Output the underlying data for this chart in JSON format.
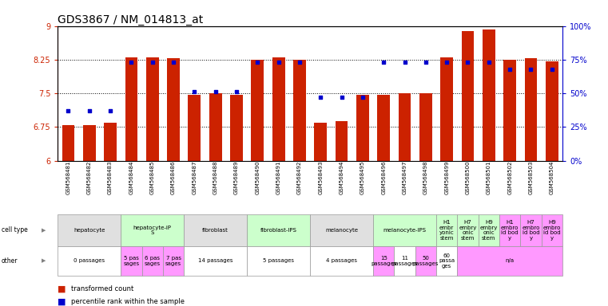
{
  "title": "GDS3867 / NM_014813_at",
  "samples": [
    "GSM568481",
    "GSM568482",
    "GSM568483",
    "GSM568484",
    "GSM568485",
    "GSM568486",
    "GSM568487",
    "GSM568488",
    "GSM568489",
    "GSM568490",
    "GSM568491",
    "GSM568492",
    "GSM568493",
    "GSM568494",
    "GSM568495",
    "GSM568496",
    "GSM568497",
    "GSM568498",
    "GSM568499",
    "GSM568500",
    "GSM568501",
    "GSM568502",
    "GSM568503",
    "GSM568504"
  ],
  "red_values": [
    6.8,
    6.8,
    6.85,
    8.3,
    8.3,
    8.28,
    7.47,
    7.5,
    7.47,
    8.25,
    8.3,
    8.25,
    6.85,
    6.88,
    7.47,
    7.47,
    7.5,
    7.5,
    8.3,
    8.88,
    8.92,
    8.25,
    8.28,
    8.22
  ],
  "blue_percentiles": [
    37,
    37,
    37,
    73,
    73,
    73,
    51,
    51,
    51,
    73,
    73,
    73,
    47,
    47,
    47,
    73,
    73,
    73,
    73,
    73,
    73,
    68,
    68,
    68
  ],
  "ylim_left": [
    6.0,
    9.0
  ],
  "ylim_right": [
    0,
    100
  ],
  "yticks_left": [
    6.0,
    6.75,
    7.5,
    8.25,
    9.0
  ],
  "ytick_labels_left": [
    "6",
    "6.75",
    "7.5",
    "8.25",
    "9"
  ],
  "yticks_right": [
    0,
    25,
    50,
    75,
    100
  ],
  "ytick_labels_right": [
    "0%",
    "25%",
    "50%",
    "75%",
    "100%"
  ],
  "cell_type_groups": [
    {
      "label": "hepatocyte",
      "start": 0,
      "end": 3,
      "color": "#e0e0e0"
    },
    {
      "label": "hepatocyte-iP\nS",
      "start": 3,
      "end": 6,
      "color": "#ccffcc"
    },
    {
      "label": "fibroblast",
      "start": 6,
      "end": 9,
      "color": "#e0e0e0"
    },
    {
      "label": "fibroblast-IPS",
      "start": 9,
      "end": 12,
      "color": "#ccffcc"
    },
    {
      "label": "melanocyte",
      "start": 12,
      "end": 15,
      "color": "#e0e0e0"
    },
    {
      "label": "melanocyte-IPS",
      "start": 15,
      "end": 18,
      "color": "#ccffcc"
    },
    {
      "label": "H1\nembr\nyonic\nstem",
      "start": 18,
      "end": 19,
      "color": "#ccffcc"
    },
    {
      "label": "H7\nembry\nonic\nstem",
      "start": 19,
      "end": 20,
      "color": "#ccffcc"
    },
    {
      "label": "H9\nembry\nonic\nstem",
      "start": 20,
      "end": 21,
      "color": "#ccffcc"
    },
    {
      "label": "H1\nembro\nid bod\ny",
      "start": 21,
      "end": 22,
      "color": "#ff99ff"
    },
    {
      "label": "H7\nembro\nid bod\ny",
      "start": 22,
      "end": 23,
      "color": "#ff99ff"
    },
    {
      "label": "H9\nembro\nid bod\ny",
      "start": 23,
      "end": 24,
      "color": "#ff99ff"
    }
  ],
  "other_groups": [
    {
      "label": "0 passages",
      "start": 0,
      "end": 3,
      "color": "#ffffff"
    },
    {
      "label": "5 pas\nsages",
      "start": 3,
      "end": 4,
      "color": "#ff99ff"
    },
    {
      "label": "6 pas\nsages",
      "start": 4,
      "end": 5,
      "color": "#ff99ff"
    },
    {
      "label": "7 pas\nsages",
      "start": 5,
      "end": 6,
      "color": "#ff99ff"
    },
    {
      "label": "14 passages",
      "start": 6,
      "end": 9,
      "color": "#ffffff"
    },
    {
      "label": "5 passages",
      "start": 9,
      "end": 12,
      "color": "#ffffff"
    },
    {
      "label": "4 passages",
      "start": 12,
      "end": 15,
      "color": "#ffffff"
    },
    {
      "label": "15\npassages",
      "start": 15,
      "end": 16,
      "color": "#ff99ff"
    },
    {
      "label": "11\npassages",
      "start": 16,
      "end": 17,
      "color": "#ffffff"
    },
    {
      "label": "50\npassages",
      "start": 17,
      "end": 18,
      "color": "#ff99ff"
    },
    {
      "label": "60\npassa\nges",
      "start": 18,
      "end": 19,
      "color": "#ffffff"
    },
    {
      "label": "n/a",
      "start": 19,
      "end": 24,
      "color": "#ff99ff"
    }
  ],
  "bar_color": "#cc2200",
  "dot_color": "#0000cc",
  "left_axis_color": "#cc2200",
  "right_axis_color": "#0000cc",
  "title_fontsize": 10,
  "tick_fontsize": 7,
  "gsm_fontsize": 5,
  "cell_fontsize": 5,
  "other_fontsize": 5,
  "legend_fontsize": 7
}
